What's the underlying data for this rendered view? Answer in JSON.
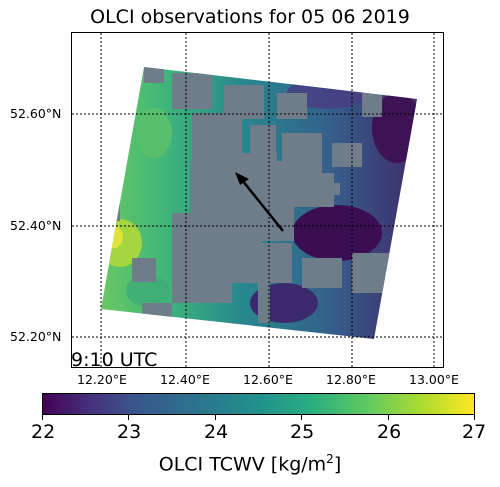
{
  "map": {
    "title": "OLCI observations for 05 06 2019",
    "time_label": "9:10 UTC",
    "lat_labels": [
      "52.60°N",
      "52.40°N",
      "52.20°N"
    ],
    "lon_labels": [
      "12.20°E",
      "12.40°E",
      "12.60°E",
      "12.80°E",
      "13.00°E"
    ]
  },
  "colorbar": {
    "ticks": [
      "22",
      "23",
      "24",
      "25",
      "26",
      "27"
    ],
    "label_prefix": "OLCI TCWV [kg/m",
    "label_exp": "2",
    "label_suffix": "]",
    "colormap": "viridis",
    "range": [
      22,
      27
    ]
  },
  "colors": {
    "cloud_mask": "#6f7d8a",
    "arrow": "#000000"
  }
}
